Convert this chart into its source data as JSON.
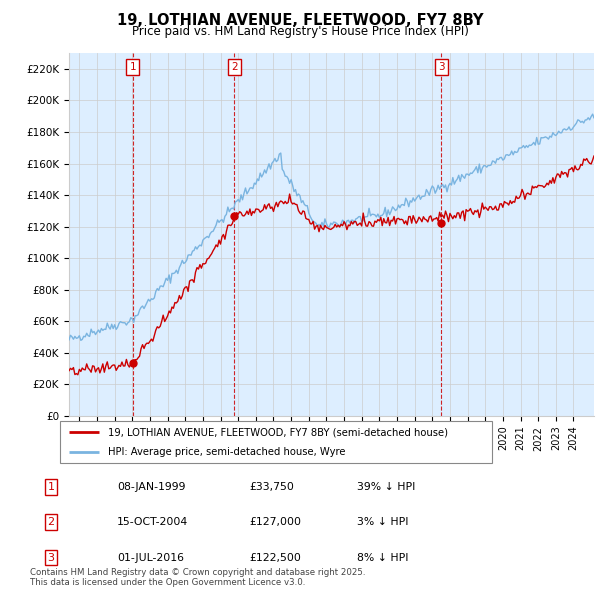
{
  "title": "19, LOTHIAN AVENUE, FLEETWOOD, FY7 8BY",
  "subtitle": "Price paid vs. HM Land Registry's House Price Index (HPI)",
  "sale_dates": [
    "1999-01-08",
    "2004-10-15",
    "2016-07-01"
  ],
  "sale_prices": [
    33750,
    127000,
    122500
  ],
  "sale_labels": [
    "1",
    "2",
    "3"
  ],
  "legend_entries": [
    "19, LOTHIAN AVENUE, FLEETWOOD, FY7 8BY (semi-detached house)",
    "HPI: Average price, semi-detached house, Wyre"
  ],
  "table_rows": [
    {
      "num": "1",
      "date": "08-JAN-1999",
      "price": "£33,750",
      "rel": "39% ↓ HPI"
    },
    {
      "num": "2",
      "date": "15-OCT-2004",
      "price": "£127,000",
      "rel": "3% ↓ HPI"
    },
    {
      "num": "3",
      "date": "01-JUL-2016",
      "price": "£122,500",
      "rel": "8% ↓ HPI"
    }
  ],
  "footnote": "Contains HM Land Registry data © Crown copyright and database right 2025.\nThis data is licensed under the Open Government Licence v3.0.",
  "ylim": [
    0,
    230000
  ],
  "yticks": [
    0,
    20000,
    40000,
    60000,
    80000,
    100000,
    120000,
    140000,
    160000,
    180000,
    200000,
    220000
  ],
  "ytick_labels": [
    "£0",
    "£20K",
    "£40K",
    "£60K",
    "£80K",
    "£100K",
    "£120K",
    "£140K",
    "£160K",
    "£180K",
    "£200K",
    "£220K"
  ],
  "hpi_color": "#7ab4e0",
  "price_color": "#cc0000",
  "vline_color": "#cc0000",
  "grid_color": "#cccccc",
  "bg_color": "#ffffff",
  "chart_bg": "#ddeeff"
}
